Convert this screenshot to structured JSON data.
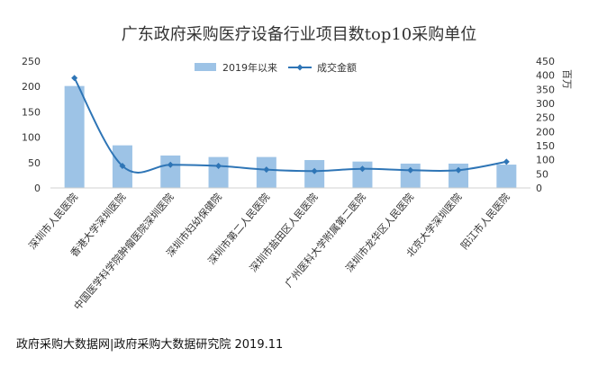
{
  "chart_data": {
    "type": "bar",
    "title": "广东政府采购医疗设备行业项目数top10采购单位",
    "categories": [
      "深圳市人民医院",
      "香港大学深圳医院",
      "中国医学科学院肿瘤医院深圳医院",
      "深圳市妇幼保健院",
      "深圳市第二人民医院",
      "深圳市盐田区人民医院",
      "广州医科大学附属第二医院",
      "深圳市龙华区人民医院",
      "北京大学深圳医院",
      "阳江市人民医院"
    ],
    "series": [
      {
        "name": "2019年以来",
        "type": "bar",
        "axis": "left",
        "color": "#9dc3e6",
        "values": [
          201,
          84,
          64,
          61,
          61,
          55,
          52,
          48,
          48,
          46
        ]
      },
      {
        "name": "成交金额",
        "type": "line",
        "axis": "right",
        "color": "#2e75b6",
        "values": [
          390,
          78,
          82,
          78,
          65,
          60,
          68,
          63,
          63,
          93
        ]
      }
    ],
    "y_left": {
      "min": 0,
      "max": 250,
      "ticks": [
        0,
        50,
        100,
        150,
        200,
        250
      ]
    },
    "y_right": {
      "min": 0,
      "max": 450,
      "ticks": [
        0,
        50,
        100,
        150,
        200,
        250,
        300,
        350,
        400,
        450
      ],
      "label": "百万"
    },
    "legend_position": "top-center",
    "grid": false
  },
  "footer": "政府采购大数据网|政府采购大数据研究院 2019.11"
}
